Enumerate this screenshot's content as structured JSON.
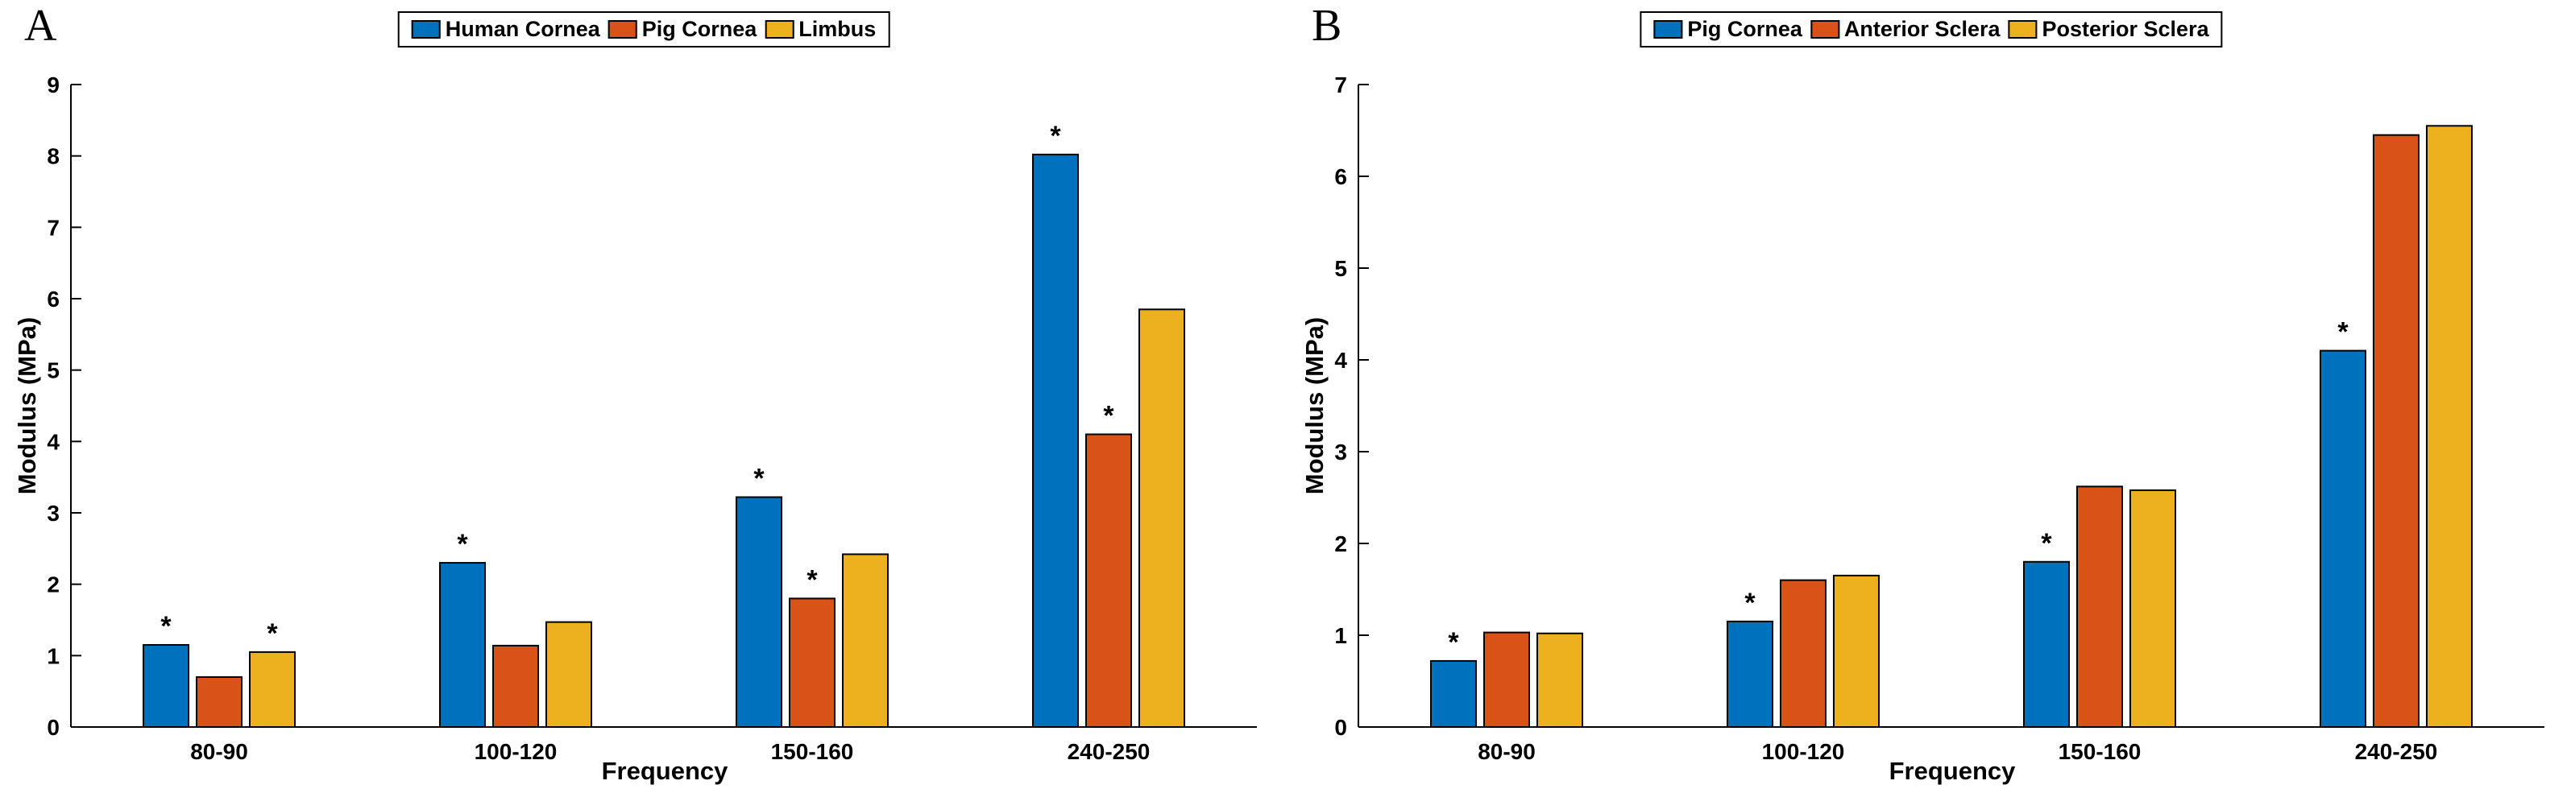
{
  "figure": {
    "background": "#ffffff",
    "significance_marker": "*"
  },
  "chart_data": [
    {
      "type": "bar",
      "panel_label": "A",
      "title": "",
      "xlabel": "Frequency",
      "ylabel": "Modulus (MPa)",
      "ylim": [
        0,
        9
      ],
      "yticks": [
        0,
        1,
        2,
        3,
        4,
        5,
        6,
        7,
        8,
        9
      ],
      "grid": false,
      "legend_position": "top-center",
      "categories": [
        "80-90",
        "100-120",
        "150-160",
        "240-250"
      ],
      "series": [
        {
          "name": "Human Cornea",
          "color": "#0072BD",
          "values": [
            1.15,
            2.3,
            3.22,
            8.02
          ],
          "sig_markers": [
            true,
            true,
            true,
            true
          ]
        },
        {
          "name": "Pig Cornea",
          "color": "#D95319",
          "values": [
            0.7,
            1.14,
            1.8,
            4.1
          ],
          "sig_markers": [
            false,
            false,
            true,
            true
          ]
        },
        {
          "name": "Limbus",
          "color": "#EDB120",
          "values": [
            1.05,
            1.47,
            2.42,
            5.85
          ],
          "sig_markers": [
            true,
            false,
            false,
            false
          ]
        }
      ]
    },
    {
      "type": "bar",
      "panel_label": "B",
      "title": "",
      "xlabel": "Frequency",
      "ylabel": "Modulus (MPa)",
      "ylim": [
        0,
        7
      ],
      "yticks": [
        0,
        1,
        2,
        3,
        4,
        5,
        6,
        7
      ],
      "grid": false,
      "legend_position": "top-center",
      "categories": [
        "80-90",
        "100-120",
        "150-160",
        "240-250"
      ],
      "series": [
        {
          "name": "Pig Cornea",
          "color": "#0072BD",
          "values": [
            0.72,
            1.15,
            1.8,
            4.1
          ],
          "sig_markers": [
            true,
            true,
            true,
            true
          ]
        },
        {
          "name": "Anterior Sclera",
          "color": "#D95319",
          "values": [
            1.03,
            1.6,
            2.62,
            6.45
          ],
          "sig_markers": [
            false,
            false,
            false,
            false
          ]
        },
        {
          "name": "Posterior Sclera",
          "color": "#EDB120",
          "values": [
            1.02,
            1.65,
            2.58,
            6.55
          ],
          "sig_markers": [
            false,
            false,
            false,
            false
          ]
        }
      ]
    }
  ]
}
